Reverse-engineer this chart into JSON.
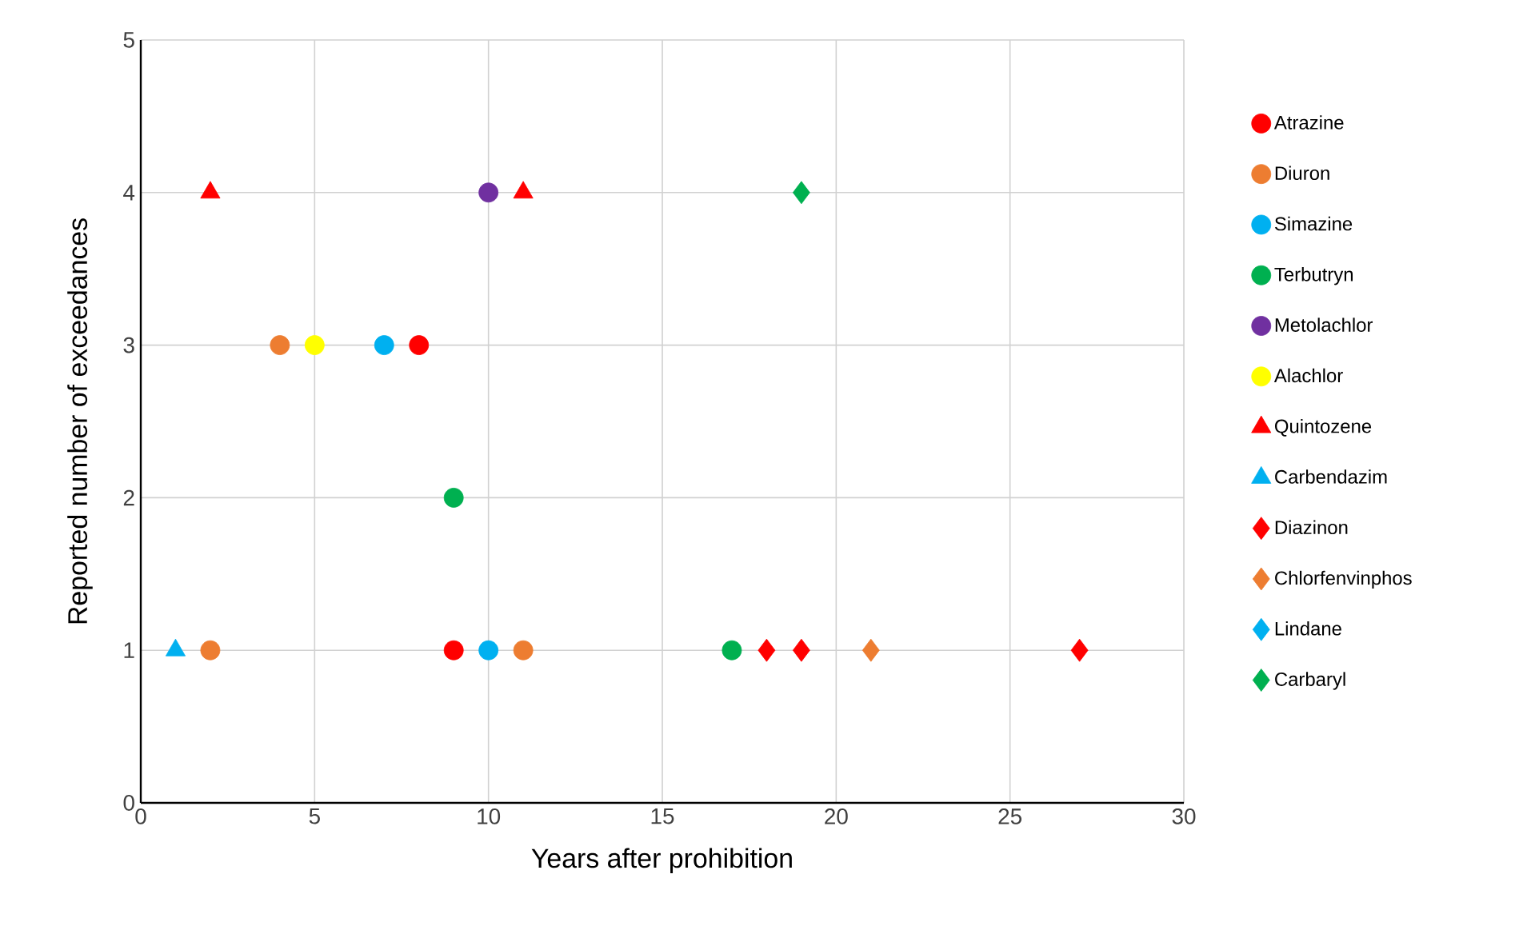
{
  "chart_data": {
    "type": "scatter",
    "xlabel": "Years after prohibition",
    "ylabel": "Reported number of exceedances",
    "xlim": [
      0,
      30
    ],
    "xticks": [
      0,
      5,
      10,
      15,
      20,
      25,
      30
    ],
    "ylim": [
      0,
      5
    ],
    "yticks": [
      0,
      1,
      2,
      3,
      4,
      5
    ],
    "grid": true,
    "legend": "right",
    "series": [
      {
        "name": "Atrazine",
        "color": "#ff0000",
        "marker": "circle",
        "x": [
          9,
          8
        ],
        "values": [
          1,
          3
        ]
      },
      {
        "name": "Diuron",
        "color": "#ed7d31",
        "marker": "circle",
        "x": [
          2,
          4,
          11
        ],
        "values": [
          1,
          3,
          1
        ]
      },
      {
        "name": "Simazine",
        "color": "#00b0f0",
        "marker": "circle",
        "x": [
          7,
          10
        ],
        "values": [
          3,
          1
        ]
      },
      {
        "name": "Terbutryn",
        "color": "#00b050",
        "marker": "circle",
        "x": [
          9,
          17
        ],
        "values": [
          2,
          1
        ]
      },
      {
        "name": "Metolachlor",
        "color": "#7030a0",
        "marker": "circle",
        "x": [
          10
        ],
        "values": [
          4
        ]
      },
      {
        "name": "Alachlor",
        "color": "#ffff00",
        "marker": "circle",
        "x": [
          5
        ],
        "values": [
          3
        ]
      },
      {
        "name": "Quintozene",
        "color": "#ff0000",
        "marker": "triangle",
        "x": [
          2,
          11
        ],
        "values": [
          4,
          4
        ]
      },
      {
        "name": "Carbendazim",
        "color": "#00b0f0",
        "marker": "triangle",
        "x": [
          1
        ],
        "values": [
          1
        ]
      },
      {
        "name": "Diazinon",
        "color": "#ff0000",
        "marker": "diamond",
        "x": [
          18,
          19,
          27
        ],
        "values": [
          1,
          1,
          1
        ]
      },
      {
        "name": "Chlorfenvinphos",
        "color": "#ed7d31",
        "marker": "diamond",
        "x": [
          21
        ],
        "values": [
          1
        ]
      },
      {
        "name": "Lindane",
        "color": "#00b0f0",
        "marker": "diamond"
      },
      {
        "name": "Carbaryl",
        "color": "#00b050",
        "marker": "diamond",
        "x": [
          19
        ],
        "values": [
          4
        ]
      }
    ]
  }
}
